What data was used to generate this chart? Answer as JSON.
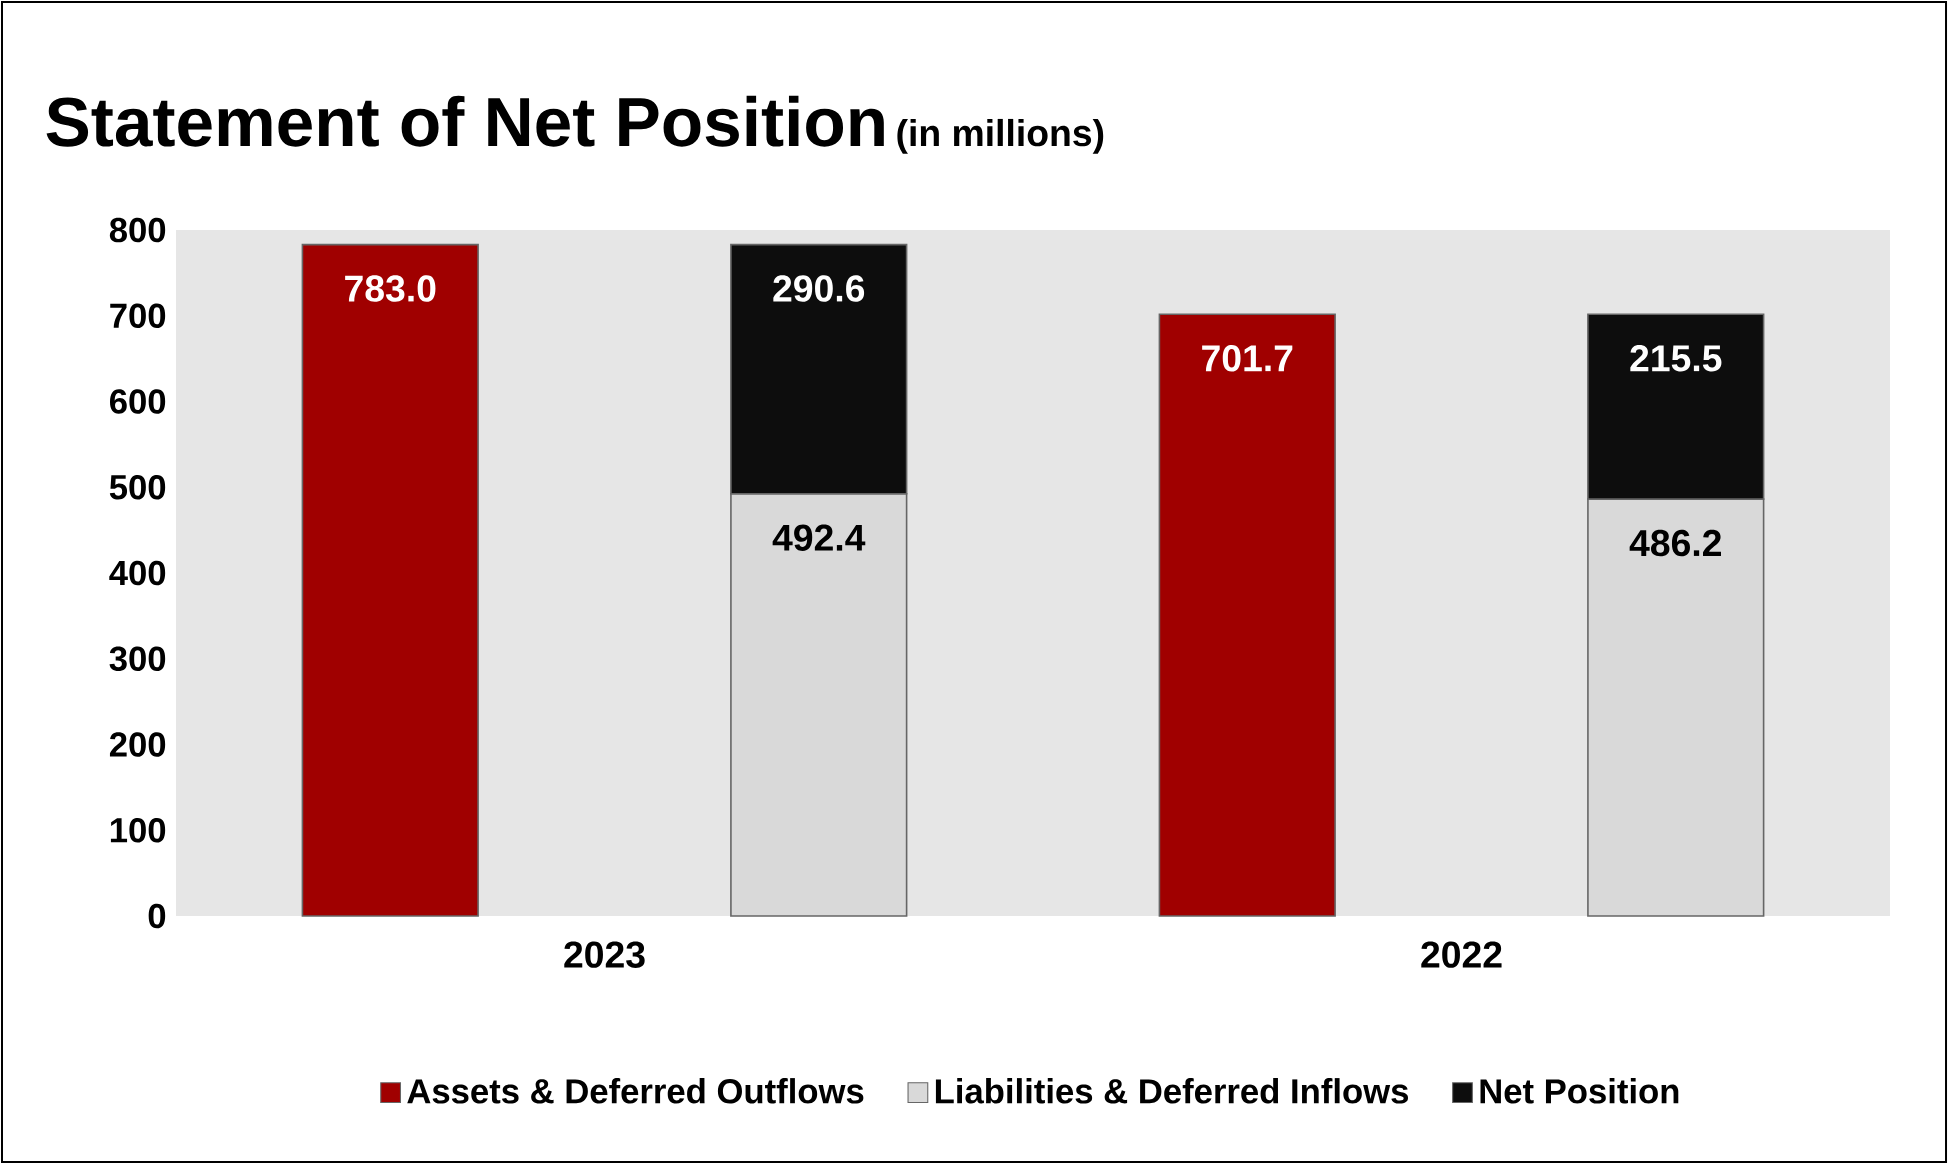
{
  "chart_data": {
    "type": "bar",
    "title": "Statement of Net Position",
    "subtitle": "(in millions)",
    "categories": [
      null,
      null,
      null,
      null
    ],
    "series": [
      {
        "name": "Assets & Deferred Outflows",
        "color": "#a00000",
        "values": [
          783.0,
          null,
          701.7,
          null
        ],
        "value_labels": [
          "783.0",
          null,
          "701.7",
          null
        ]
      },
      {
        "name": "Liabilities & Deferred Inflows",
        "color": "#d9d9d9",
        "values": [
          null,
          492.4,
          null,
          486.2
        ],
        "value_labels": [
          null,
          "492.4",
          null,
          "486.2"
        ]
      },
      {
        "name": "Net Position",
        "color": "#0d0d0d",
        "values": [
          null,
          290.6,
          null,
          215.5
        ],
        "value_labels": [
          null,
          "290.6",
          null,
          "215.5"
        ]
      }
    ],
    "annotations": [
      "2023",
      "2022"
    ],
    "ylim": [
      0,
      800
    ],
    "yticks": [
      0,
      100,
      200,
      300,
      400,
      500,
      600,
      700,
      800
    ],
    "stacked": true,
    "legend": "bottom"
  }
}
